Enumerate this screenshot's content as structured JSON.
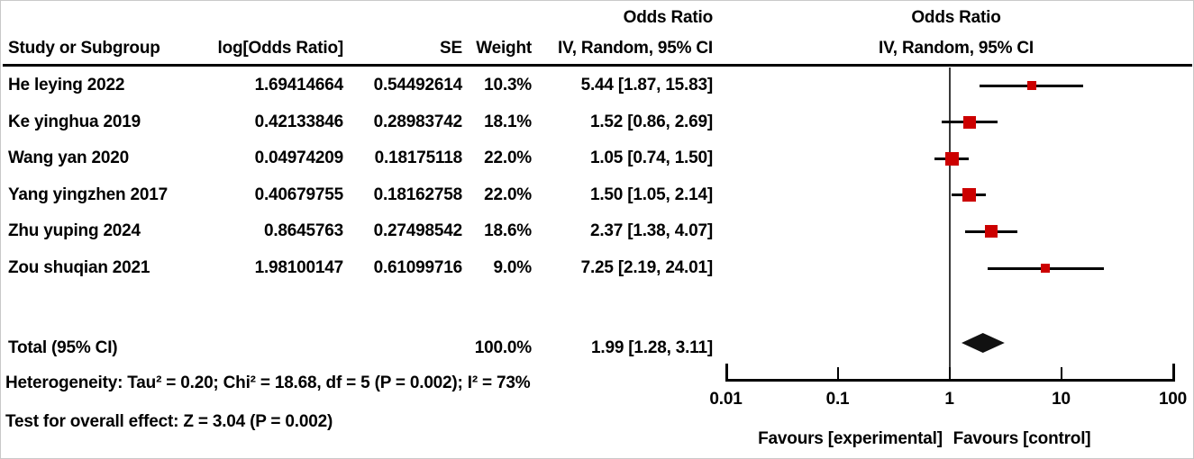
{
  "titles": {
    "stats_effect_title": "Odds Ratio",
    "plot_effect_title": "Odds Ratio",
    "stats_model_header": "IV, Random, 95% CI",
    "plot_model_header": "IV, Random, 95% CI"
  },
  "columns": {
    "study": "Study or Subgroup",
    "log_or": "log[Odds Ratio]",
    "se": "SE",
    "weight": "Weight"
  },
  "total_row": {
    "label": "Total (95% CI)",
    "weight_text": "100.0%",
    "estimate_text": "1.99 [1.28, 3.11]"
  },
  "footer": {
    "heterogeneity": "Heterogeneity: Tau² = 0.20; Chi² = 18.68, df = 5 (P = 0.002); I² = 73%",
    "overall_effect": "Test for overall effect: Z = 3.04 (P = 0.002)"
  },
  "axis": {
    "tick_labels": [
      "0.01",
      "0.1",
      "1",
      "10",
      "100"
    ],
    "favours_left": "Favours [experimental]",
    "favours_right": "Favours [control]"
  },
  "colors": {
    "marker": "#cc0000",
    "diamond": "#111111",
    "line": "#000000"
  },
  "chart_data": {
    "type": "scatter",
    "subtype": "forest-plot",
    "effect_measure": "Odds Ratio",
    "model": "IV, Random, 95% CI",
    "x_scale": "log10",
    "xlim": [
      0.01,
      100
    ],
    "x_ticks": [
      0.01,
      0.1,
      1,
      10,
      100
    ],
    "studies": [
      {
        "name": "He leying 2022",
        "log_or": 1.69414664,
        "se": 0.54492614,
        "weight_pct": 10.3,
        "or": 5.44,
        "ci_low": 1.87,
        "ci_high": 15.83,
        "weight_text": "10.3%",
        "estimate_text": "5.44 [1.87, 15.83]"
      },
      {
        "name": "Ke yinghua 2019",
        "log_or": 0.42133846,
        "se": 0.28983742,
        "weight_pct": 18.1,
        "or": 1.52,
        "ci_low": 0.86,
        "ci_high": 2.69,
        "weight_text": "18.1%",
        "estimate_text": "1.52 [0.86, 2.69]"
      },
      {
        "name": "Wang yan 2020",
        "log_or": 0.04974209,
        "se": 0.18175118,
        "weight_pct": 22.0,
        "or": 1.05,
        "ci_low": 0.74,
        "ci_high": 1.5,
        "weight_text": "22.0%",
        "estimate_text": "1.05 [0.74, 1.50]"
      },
      {
        "name": "Yang yingzhen 2017",
        "log_or": 0.40679755,
        "se": 0.18162758,
        "weight_pct": 22.0,
        "or": 1.5,
        "ci_low": 1.05,
        "ci_high": 2.14,
        "weight_text": "22.0%",
        "estimate_text": "1.50 [1.05, 2.14]"
      },
      {
        "name": "Zhu yuping 2024",
        "log_or": 0.8645763,
        "se": 0.27498542,
        "weight_pct": 18.6,
        "or": 2.37,
        "ci_low": 1.38,
        "ci_high": 4.07,
        "weight_text": "18.6%",
        "estimate_text": "2.37 [1.38, 4.07]"
      },
      {
        "name": "Zou shuqian 2021",
        "log_or": 1.98100147,
        "se": 0.61099716,
        "weight_pct": 9.0,
        "or": 7.25,
        "ci_low": 2.19,
        "ci_high": 24.01,
        "weight_text": "9.0%",
        "estimate_text": "7.25 [2.19, 24.01]"
      }
    ],
    "total": {
      "or": 1.99,
      "ci_low": 1.28,
      "ci_high": 3.11,
      "weight_pct": 100.0
    },
    "heterogeneity": {
      "tau2": 0.2,
      "chi2": 18.68,
      "df": 5,
      "p": 0.002,
      "i2_pct": 73
    },
    "overall_effect": {
      "z": 3.04,
      "p": 0.002
    }
  }
}
